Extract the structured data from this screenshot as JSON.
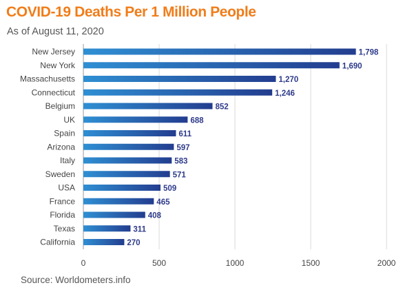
{
  "header": {
    "title": "COVID-19 Deaths Per 1 Million People",
    "subtitle": "As of August 11, 2020"
  },
  "footer": {
    "source": "Source: Worldometers.info"
  },
  "colors": {
    "title": "#f07d1a",
    "bar_light": "#2f8fd3",
    "bar_dark": "#233d8f",
    "value_label": "#2e3b8a",
    "grid": "#d8d8d8"
  },
  "chart_data": {
    "type": "bar",
    "orientation": "horizontal",
    "title": "COVID-19 Deaths Per 1 Million People",
    "subtitle": "As of August 11, 2020",
    "categories": [
      "New Jersey",
      "New York",
      "Massachusetts",
      "Connecticut",
      "Belgium",
      "UK",
      "Spain",
      "Arizona",
      "Italy",
      "Sweden",
      "USA",
      "France",
      "Florida",
      "Texas",
      "California"
    ],
    "values": [
      1798,
      1690,
      1270,
      1246,
      852,
      688,
      611,
      597,
      583,
      571,
      509,
      465,
      408,
      311,
      270
    ],
    "value_labels": [
      "1,798",
      "1,690",
      "1,270",
      "1,246",
      "852",
      "688",
      "611",
      "597",
      "583",
      "571",
      "509",
      "465",
      "408",
      "311",
      "270"
    ],
    "xlim": [
      0,
      2000
    ],
    "xticks": [
      0,
      500,
      1000,
      1500,
      2000
    ],
    "xtick_labels": [
      "0",
      "500",
      "1000",
      "1500",
      "2000"
    ],
    "xlabel": "",
    "ylabel": "",
    "grid": "vertical",
    "legend": "none"
  }
}
